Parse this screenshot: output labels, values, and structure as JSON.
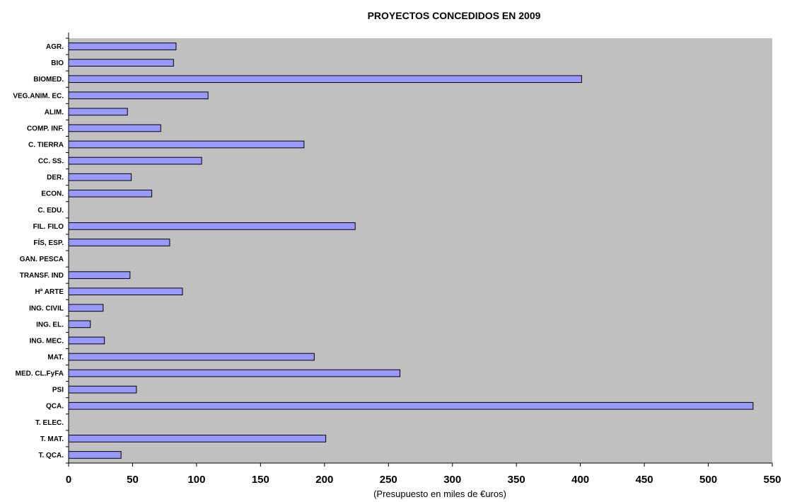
{
  "chart_data": {
    "type": "bar",
    "orientation": "horizontal",
    "title": "PROYECTOS CONCEDIDOS EN 2009",
    "xlabel": "(Presupuesto en miles de €uros)",
    "ylabel": "",
    "xlim": [
      0,
      550
    ],
    "x_ticks": [
      0,
      50,
      100,
      150,
      200,
      250,
      300,
      350,
      400,
      450,
      500,
      550
    ],
    "grid": false,
    "legend": "none",
    "plot_background": "#c0c0c0",
    "bar_color": "#9999ff",
    "categories": [
      "AGR.",
      "BIO",
      "BIOMED.",
      "VEG.ANIM. EC.",
      "ALIM.",
      "COMP. INF.",
      "C. TIERRA",
      "CC. SS.",
      "DER.",
      "ECON.",
      "C. EDU.",
      "FIL. FILO",
      "FÍS, ESP.",
      "GAN. PESCA",
      "TRANSF. IND",
      "Hª ARTE",
      "ING. CIVIL",
      "ING. EL.",
      "ING. MEC.",
      "MAT.",
      "MED. CL.FyFA",
      "PSI",
      "QCA.",
      "T. ELEC.",
      "T. MAT.",
      "T. QCA."
    ],
    "values": [
      84,
      82,
      401,
      109,
      46,
      72,
      184,
      104,
      49,
      65,
      0,
      224,
      79,
      0,
      48,
      89,
      27,
      17,
      28,
      192,
      259,
      53,
      535,
      0,
      201,
      41
    ]
  }
}
